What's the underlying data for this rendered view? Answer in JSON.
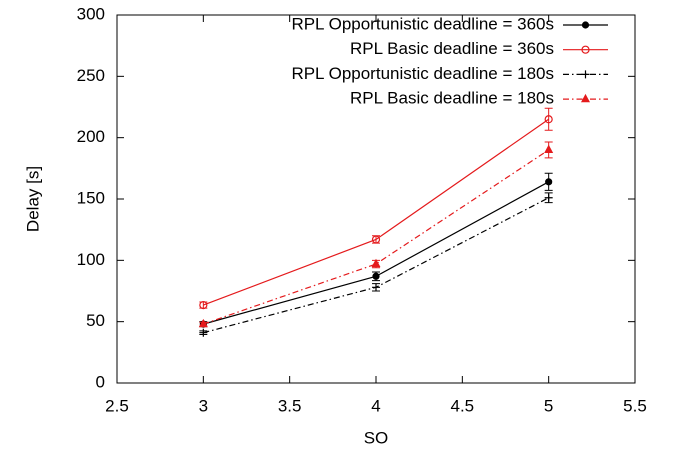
{
  "chart_data": {
    "type": "line",
    "x_label": "SO",
    "y_label": "Delay [s]",
    "xlim": [
      2.5,
      5.5
    ],
    "xticks": [
      2.5,
      3,
      3.5,
      4,
      4.5,
      5,
      5.5
    ],
    "ylim": [
      0,
      300
    ],
    "yticks": [
      0,
      50,
      100,
      150,
      200,
      250,
      300
    ],
    "grid": false,
    "legend": "top-right",
    "x": [
      3,
      4,
      5
    ],
    "series": [
      {
        "name": "RPL Opportunistic deadline = 360s",
        "color": "#000000",
        "line_style": "solid",
        "marker": "filled-circle",
        "values": [
          48,
          87,
          164
        ],
        "errors": [
          2,
          3.5,
          7
        ]
      },
      {
        "name": "RPL Basic deadline = 360s",
        "color": "#e41a1c",
        "line_style": "solid",
        "marker": "open-circle",
        "values": [
          63.5,
          117,
          215
        ],
        "errors": [
          2.5,
          3,
          9
        ]
      },
      {
        "name": "RPL Opportunistic deadline = 180s",
        "color": "#000000",
        "line_style": "dashdot",
        "marker": "plus",
        "values": [
          41,
          78,
          151
        ],
        "errors": [
          1.5,
          3,
          4
        ]
      },
      {
        "name": "RPL Basic deadline = 180s",
        "color": "#e41a1c",
        "line_style": "dashdot",
        "marker": "triangle",
        "values": [
          48,
          97,
          190
        ],
        "errors": [
          1.5,
          3,
          6.5
        ]
      }
    ]
  }
}
